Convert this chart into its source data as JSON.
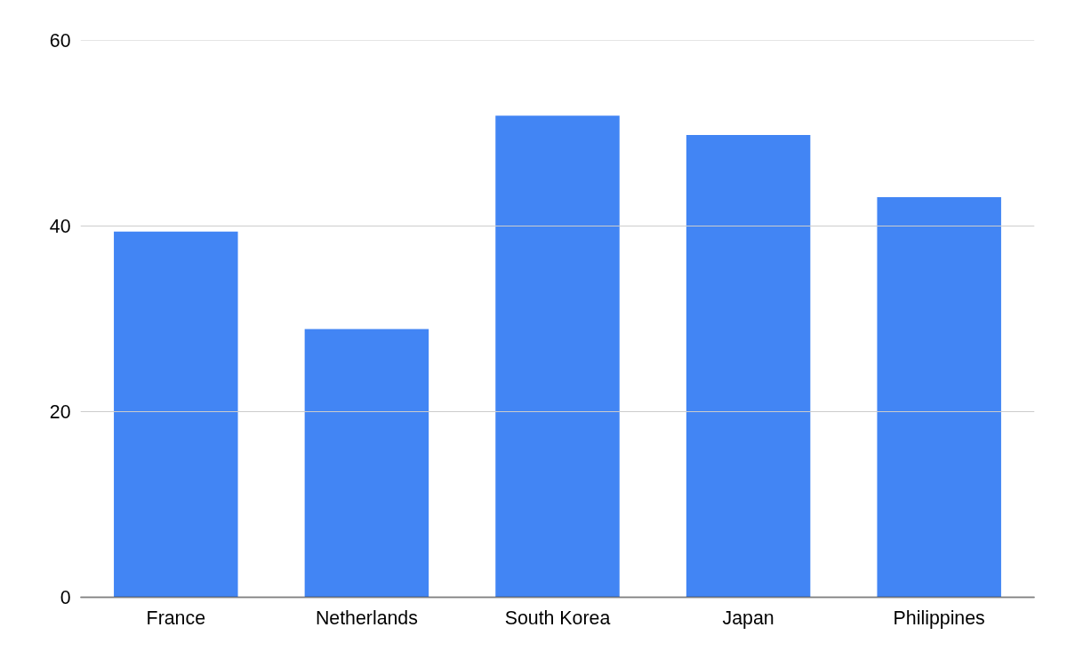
{
  "chart_data": {
    "type": "bar",
    "categories": [
      "France",
      "Netherlands",
      "South Korea",
      "Japan",
      "Philippines"
    ],
    "values": [
      39.4,
      28.9,
      51.9,
      49.8,
      43.1
    ],
    "color": "#4285f4",
    "ylim": [
      0,
      60
    ],
    "yticks": [
      0,
      20,
      40,
      60
    ],
    "grid": "y"
  }
}
